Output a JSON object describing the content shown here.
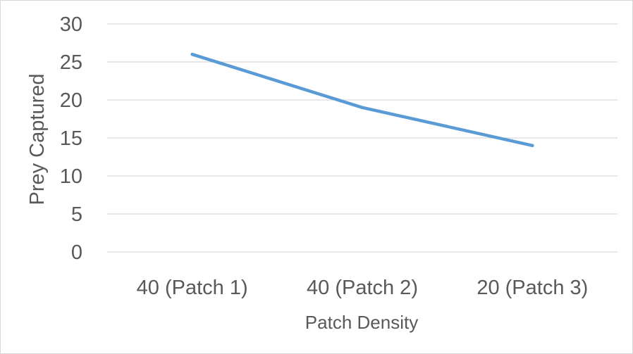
{
  "chart_data": {
    "type": "line",
    "title": "",
    "xlabel": "Patch Density",
    "ylabel": "Prey Captured",
    "categories": [
      "40 (Patch 1)",
      "40 (Patch 2)",
      "20 (Patch 3)"
    ],
    "series": [
      {
        "values": [
          26,
          19,
          14
        ],
        "color": "#5b9bd5"
      }
    ],
    "ylim": [
      0,
      30
    ],
    "yticks": [
      "0",
      "5",
      "10",
      "15",
      "20",
      "25",
      "30"
    ],
    "grid": true,
    "legend": "none"
  }
}
